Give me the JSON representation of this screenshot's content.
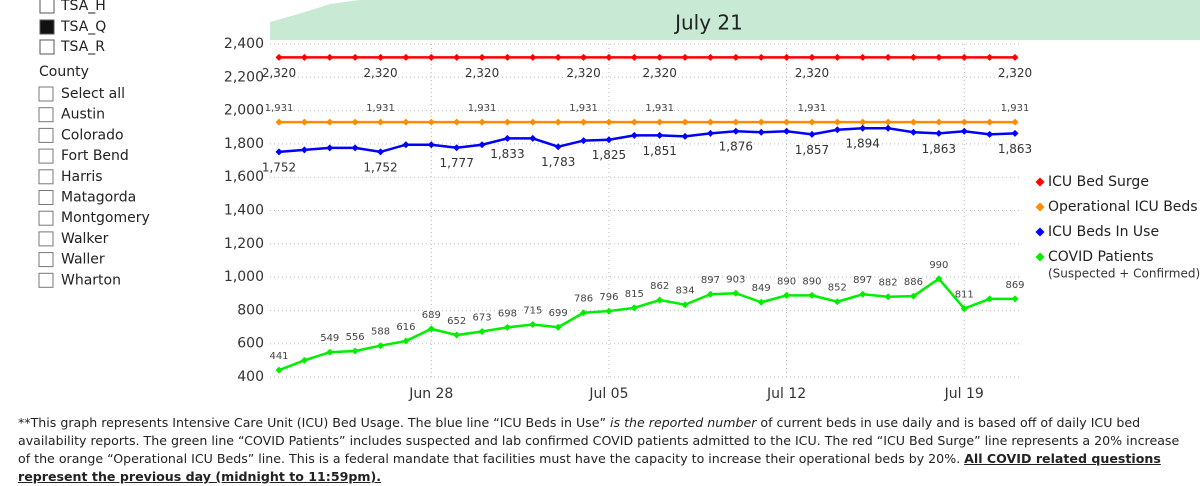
{
  "slicer": {
    "tsa_items": [
      "TSA_H",
      "TSA_Q",
      "TSA_R"
    ],
    "tsa_checked": 1,
    "county_title": "County",
    "county_items": [
      "Select all",
      "Austin",
      "Colorado",
      "Fort Bend",
      "Harris",
      "Matagorda",
      "Montgomery",
      "Walker",
      "Waller",
      "Wharton"
    ]
  },
  "note": [
    "**This graph represents Intensive Care Unit (ICU) Bed Usage. The blue line “ICU Beds in Use” ",
    "is the reported number",
    " of current beds in use daily and is based off of daily ICU bed availability reports. The green line “COVID Patients” includes suspected and lab confirmed COVID patients admitted to the ICU. The red “ICU Bed Surge” line represents a 20% increase of the orange “Operational ICU Beds” line. This is a federal mandate that facilities must have the capacity to increase their operational beds by 20%. ",
    "All COVID related questions represent the previous day (midnight to 11:59pm)."
  ],
  "chart_data": {
    "type": "line",
    "title": "July 21",
    "categories": [
      null,
      null,
      null,
      null,
      null,
      null,
      "Jun 28",
      null,
      null,
      null,
      null,
      null,
      null,
      "Jul 05",
      null,
      null,
      null,
      null,
      null,
      null,
      "Jul 12",
      null,
      null,
      null,
      null,
      null,
      null,
      "Jul 19",
      null,
      null
    ],
    "ylim": [
      400,
      2400
    ],
    "yticks": [
      {
        "value": 400,
        "label": "400"
      },
      {
        "value": 600,
        "label": "600"
      },
      {
        "value": 800,
        "label": "800"
      },
      {
        "value": 1000,
        "label": "1,000"
      },
      {
        "value": 1200,
        "label": "1,200"
      },
      {
        "value": 1400,
        "label": "1,400"
      },
      {
        "value": 1600,
        "label": "1,600"
      },
      {
        "value": 1800,
        "label": "1,800"
      },
      {
        "value": 2000,
        "label": "2,000"
      },
      {
        "value": 2200,
        "label": "2,200"
      },
      {
        "value": 2400,
        "label": "2,400"
      }
    ],
    "grid": true,
    "legend": "right",
    "legend_note": "(Suspected + Confirmed)",
    "series": [
      {
        "name": "ICU Bed Surge",
        "color": "#ff0000",
        "label_pos": "below",
        "values": [
          2320,
          2320,
          2320,
          2320,
          2320,
          2320,
          2320,
          2320,
          2320,
          2320,
          2320,
          2320,
          2320,
          2320,
          2320,
          2320,
          2320,
          2320,
          2320,
          2320,
          2320,
          2320,
          2320,
          2320,
          2320,
          2320,
          2320,
          2320,
          2320,
          2320
        ],
        "value_labels": [
          "2,320",
          null,
          null,
          null,
          "2,320",
          null,
          null,
          null,
          "2,320",
          null,
          null,
          null,
          "2,320",
          null,
          null,
          "2,320",
          null,
          null,
          null,
          null,
          null,
          "2,320",
          null,
          null,
          null,
          null,
          null,
          null,
          null,
          "2,320"
        ]
      },
      {
        "name": "Operational ICU Beds",
        "color": "#ff8c00",
        "label_pos": "above",
        "values": [
          1931,
          1931,
          1931,
          1931,
          1931,
          1931,
          1931,
          1931,
          1931,
          1931,
          1931,
          1931,
          1931,
          1931,
          1931,
          1931,
          1931,
          1931,
          1931,
          1931,
          1931,
          1931,
          1931,
          1931,
          1931,
          1931,
          1931,
          1931,
          1931,
          1931
        ],
        "value_labels": [
          "1,931",
          null,
          null,
          null,
          "1,931",
          null,
          null,
          null,
          "1,931",
          null,
          null,
          null,
          "1,931",
          null,
          null,
          "1,931",
          null,
          null,
          null,
          null,
          null,
          "1,931",
          null,
          null,
          null,
          null,
          null,
          null,
          null,
          "1,931"
        ]
      },
      {
        "name": "ICU Beds In Use",
        "color": "#0000ff",
        "label_pos": "below",
        "values": [
          1752,
          1764,
          1776,
          1776,
          1752,
          1795,
          1795,
          1777,
          1795,
          1833,
          1833,
          1783,
          1820,
          1825,
          1851,
          1851,
          1845,
          1863,
          1876,
          1870,
          1876,
          1857,
          1885,
          1894,
          1894,
          1870,
          1863,
          1876,
          1857,
          1863
        ],
        "value_labels": [
          "1,752",
          null,
          null,
          null,
          "1,752",
          null,
          null,
          "1,777",
          null,
          "1,833",
          null,
          "1,783",
          null,
          "1,825",
          null,
          "1,851",
          null,
          null,
          "1,876",
          null,
          null,
          "1,857",
          null,
          "1,894",
          null,
          null,
          "1,863",
          null,
          null,
          "1,863"
        ]
      },
      {
        "name": "COVID Patients",
        "color": "#00ee00",
        "label_pos": "above",
        "values": [
          441,
          500,
          549,
          556,
          588,
          616,
          689,
          652,
          673,
          698,
          715,
          699,
          786,
          796,
          815,
          862,
          834,
          897,
          903,
          849,
          890,
          890,
          852,
          897,
          882,
          886,
          990,
          811,
          869,
          869
        ],
        "value_labels": [
          "441",
          null,
          "549",
          "556",
          "588",
          "616",
          "689",
          "652",
          "673",
          "698",
          "715",
          "699",
          "786",
          "796",
          "815",
          "862",
          "834",
          "897",
          "903",
          "849",
          "890",
          "890",
          "852",
          "897",
          "882",
          "886",
          "990",
          "811",
          null,
          "869"
        ]
      }
    ]
  }
}
